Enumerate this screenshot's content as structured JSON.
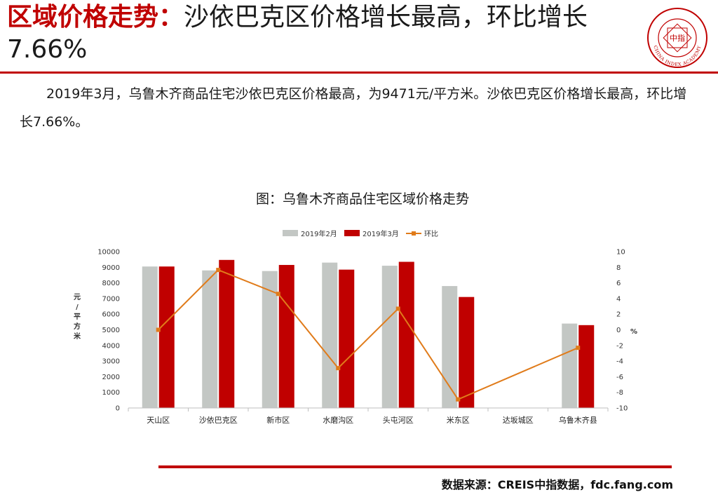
{
  "slide": {
    "headline_prefix": "区域价格走势：",
    "headline_rest": "沙依巴克区价格增长最高，环比增长7.66%",
    "summary": "2019年3月，乌鲁木齐商品住宅沙依巴克区价格最高，为9471元/平方米。沙依巴克区价格增长最高，环比增长7.66%。",
    "source": "数据来源：CREIS中指数据，fdc.fang.com",
    "logo_text": "CHINA INDEX ACADEMY",
    "logo_center": "中指",
    "colors": {
      "accent_red": "#c00000",
      "series_feb": "#c3c7c4",
      "series_mar": "#c00000",
      "series_mom": "#e07b1a"
    }
  },
  "chart_data": {
    "type": "bar",
    "title": "图：乌鲁木齐商品住宅区域价格走势",
    "categories": [
      "天山区",
      "沙依巴克区",
      "新市区",
      "水磨沟区",
      "头屯河区",
      "米东区",
      "达坂城区",
      "乌鲁木齐县"
    ],
    "series": [
      {
        "name": "2019年2月",
        "type": "bar",
        "axis": "left",
        "values": [
          9050,
          8800,
          8760,
          9300,
          9100,
          7800,
          null,
          5400
        ]
      },
      {
        "name": "2019年3月",
        "type": "bar",
        "axis": "left",
        "values": [
          9050,
          9471,
          9150,
          8850,
          9350,
          7100,
          null,
          5300
        ]
      },
      {
        "name": "环比",
        "type": "line",
        "axis": "right",
        "values": [
          0,
          7.66,
          4.6,
          -4.9,
          2.7,
          -8.9,
          null,
          -2.3
        ]
      }
    ],
    "ylabel": "元/平方米",
    "y2label": "%",
    "ylim": [
      0,
      10000
    ],
    "y2lim": [
      -10,
      10
    ],
    "yticks": [
      "0",
      "1000",
      "2000",
      "3000",
      "4000",
      "5000",
      "6000",
      "7000",
      "8000",
      "9000",
      "10000"
    ],
    "y2ticks": [
      "-10",
      "-8",
      "-6",
      "-4",
      "-2",
      "0",
      "2",
      "4",
      "6",
      "8",
      "10"
    ],
    "legend_position": "top",
    "grid": false
  }
}
